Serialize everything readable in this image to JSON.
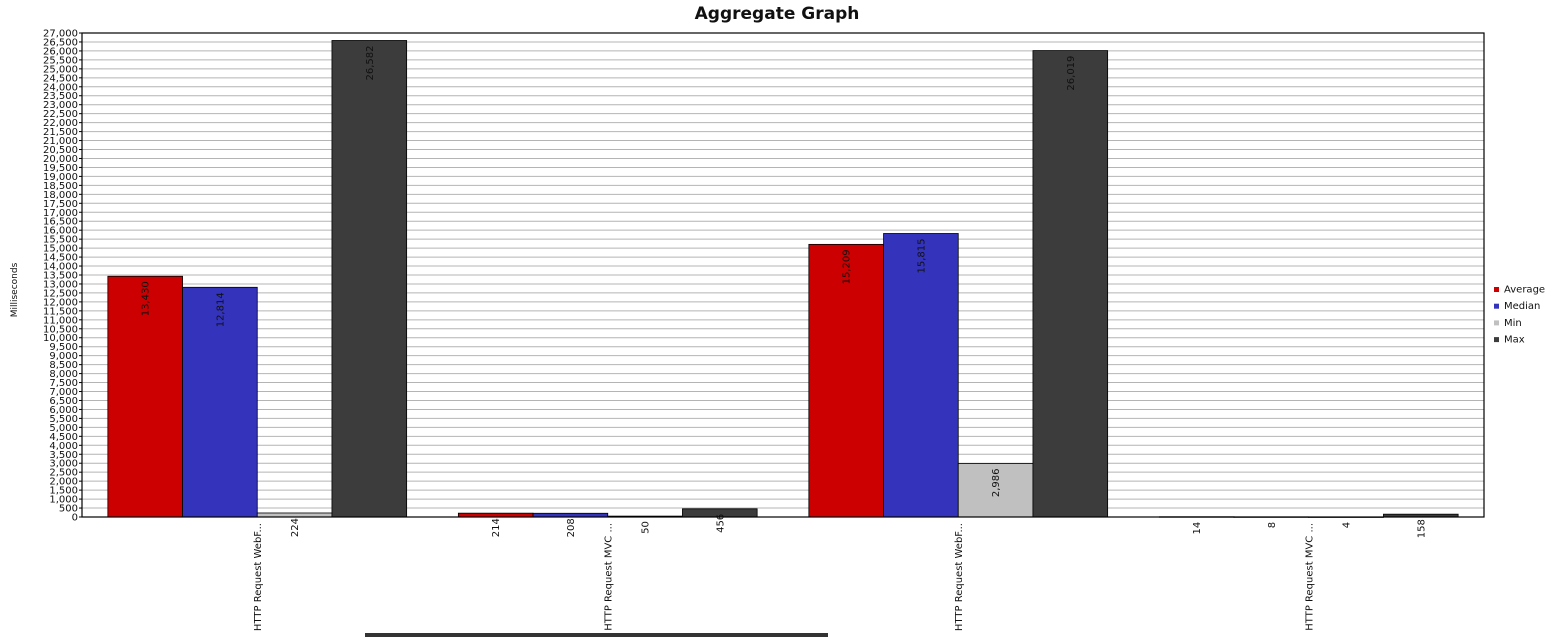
{
  "chart_data": {
    "type": "bar",
    "title": "Aggregate Graph",
    "xlabel": "",
    "ylabel": "Milliseconds",
    "ylim": [
      0,
      27000
    ],
    "ytick_step": 500,
    "grid": true,
    "legend_position": "right",
    "categories": [
      "HTTP Request WebF...",
      "HTTP Request MVC ...",
      "HTTP Request WebF...",
      "HTTP Request MVC ..."
    ],
    "series": [
      {
        "name": "Average",
        "color": "#cc0000",
        "values": [
          13430,
          214,
          15209,
          14
        ],
        "labels": [
          "13,430",
          "214",
          "15,209",
          "14"
        ]
      },
      {
        "name": "Median",
        "color": "#3333bb",
        "values": [
          12814,
          208,
          15815,
          8
        ],
        "labels": [
          "12,814",
          "208",
          "15,815",
          "8"
        ]
      },
      {
        "name": "Min",
        "color": "#c0c0c0",
        "values": [
          224,
          50,
          2986,
          4
        ],
        "labels": [
          "224",
          "50",
          "2,986",
          "4"
        ]
      },
      {
        "name": "Max",
        "color": "#3c3c3c",
        "values": [
          26582,
          456,
          26019,
          158
        ],
        "labels": [
          "26,582",
          "456",
          "26,019",
          "158"
        ]
      }
    ]
  }
}
